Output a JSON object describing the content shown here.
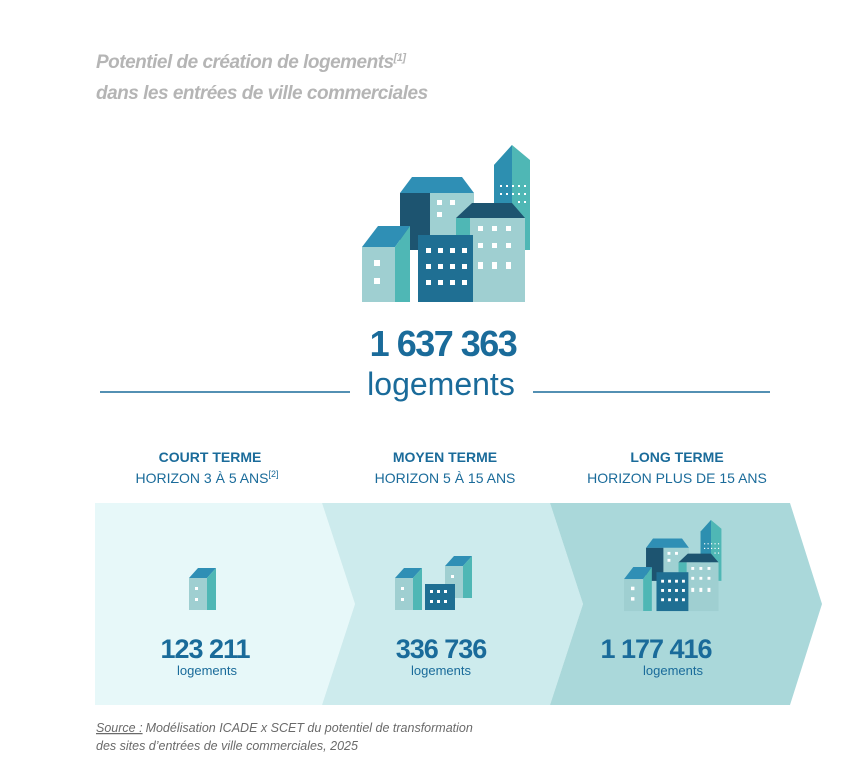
{
  "header": {
    "title_line1": "Potentiel de création de logements",
    "title_note": "[1]",
    "title_line2": "dans les entrées de ville commerciales"
  },
  "total": {
    "value": "1 637 363",
    "unit": "logements"
  },
  "phases": [
    {
      "title": "COURT TERME",
      "horizon": "HORIZON 3 À 5 ANS",
      "note": "[2]",
      "value": "123 211",
      "unit": "logements"
    },
    {
      "title": "MOYEN TERME",
      "horizon": "HORIZON 5 À 15 ANS",
      "value": "336 736",
      "unit": "logements"
    },
    {
      "title": "LONG TERME",
      "horizon": "HORIZON PLUS DE 15 ANS",
      "value": "1 177 416",
      "unit": "logements"
    }
  ],
  "source": {
    "label": "Source :",
    "line1": "Modélisation ICADE x SCET du potentiel de transformation",
    "line2": "des sites d’entrées de ville commerciales, 2025"
  }
}
